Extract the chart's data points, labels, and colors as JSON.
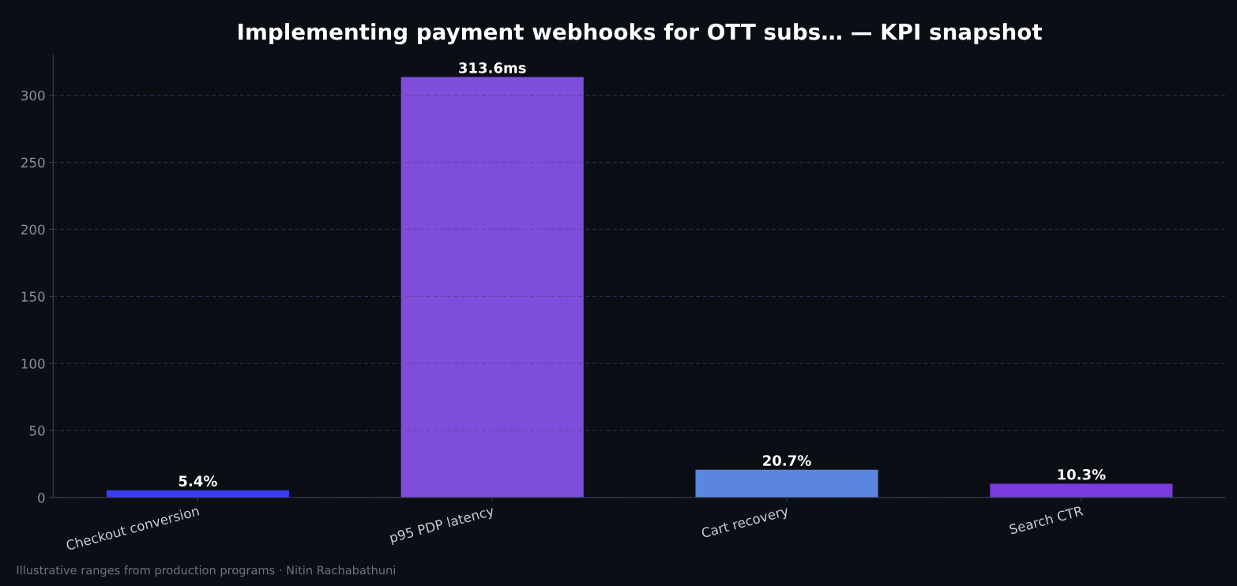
{
  "chart_data": {
    "type": "bar",
    "title": "Implementing payment webhooks for OTT subs… — KPI snapshot",
    "categories": [
      "Checkout conversion",
      "p95 PDP latency",
      "Cart recovery",
      "Search CTR"
    ],
    "values": [
      5.4,
      313.6,
      20.7,
      10.3
    ],
    "colors": [
      "#3a3cf2",
      "#7e4edb",
      "#5b86e0",
      "#7a3cdc"
    ],
    "value_labels": [
      "5.4%",
      "313.6ms",
      "20.7%",
      "10.3%"
    ],
    "ylim": [
      0,
      330
    ],
    "yticks": [
      0,
      50,
      100,
      150,
      200,
      250,
      300
    ],
    "grid": "y",
    "annotations": [
      "Illustrative ranges from production programs · Nitin Rachabathuni"
    ]
  }
}
